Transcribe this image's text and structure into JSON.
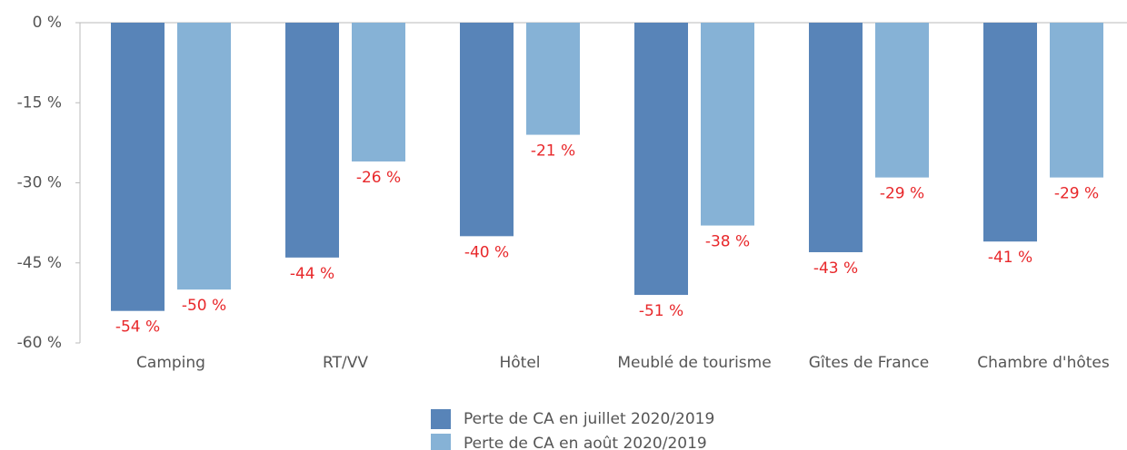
{
  "chart_data": {
    "type": "bar",
    "categories": [
      "Camping",
      "RT/VV",
      "Hôtel",
      "Meublé de tourisme",
      "Gîtes de France",
      "Chambre d'hôtes"
    ],
    "series": [
      {
        "name": "Perte de CA en juillet 2020/2019",
        "color": "#5884b8",
        "values": [
          -54,
          -44,
          -40,
          -51,
          -43,
          -41
        ],
        "value_labels": [
          "-54 %",
          "-44 %",
          "-40 %",
          "-51 %",
          "-43 %",
          "-41 %"
        ]
      },
      {
        "name": "Perte de CA en août 2020/2019",
        "color": "#86b2d6",
        "values": [
          -50,
          -26,
          -21,
          -38,
          -29,
          -29
        ],
        "value_labels": [
          "-50 %",
          "-26 %",
          "-21 %",
          "-38 %",
          "-29 %",
          "-29 %"
        ]
      }
    ],
    "ylim": [
      -60,
      0
    ],
    "yticks": [
      {
        "value": 0,
        "label": "0 %"
      },
      {
        "value": -15,
        "label": "-15 %"
      },
      {
        "value": -30,
        "label": "-30 %"
      },
      {
        "value": -45,
        "label": "-45 %"
      },
      {
        "value": -60,
        "label": "-60 %"
      }
    ],
    "value_label_color": "#e8282b",
    "legend": "bottom"
  }
}
